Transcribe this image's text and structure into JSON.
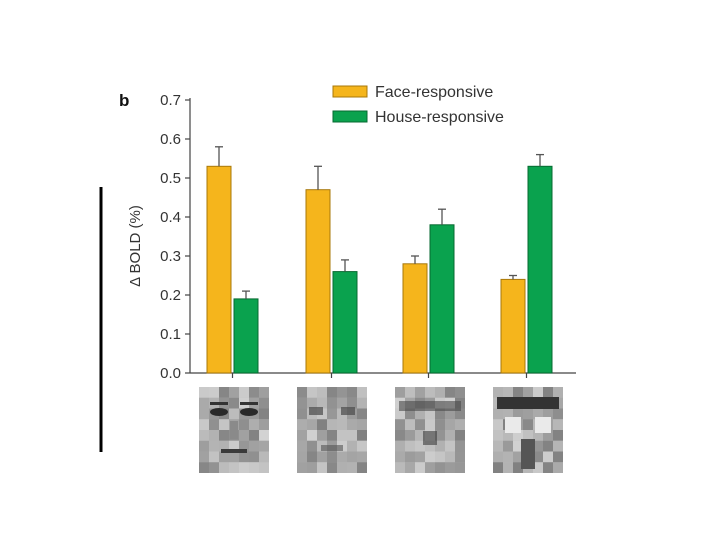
{
  "chart_data": {
    "type": "bar",
    "panel_label": "b",
    "ylabel": "Δ BOLD (%)",
    "ylim": [
      0,
      0.7
    ],
    "yticks": [
      "0.0",
      "0.1",
      "0.2",
      "0.3",
      "0.4",
      "0.5",
      "0.6",
      "0.7"
    ],
    "categories": [
      "face image",
      "face-like noise image",
      "house-like noise image",
      "house image"
    ],
    "series": [
      {
        "name": "Face-responsive",
        "color": "#f5b51c",
        "edge": "#a8780a",
        "values": [
          0.53,
          0.47,
          0.28,
          0.24
        ],
        "errors": [
          0.05,
          0.06,
          0.02,
          0.01
        ]
      },
      {
        "name": "House-responsive",
        "color": "#0aa24e",
        "edge": "#066a30",
        "values": [
          0.19,
          0.26,
          0.38,
          0.53
        ],
        "errors": [
          0.02,
          0.03,
          0.04,
          0.03
        ]
      }
    ],
    "legend_position": "top-right",
    "grid": false
  }
}
